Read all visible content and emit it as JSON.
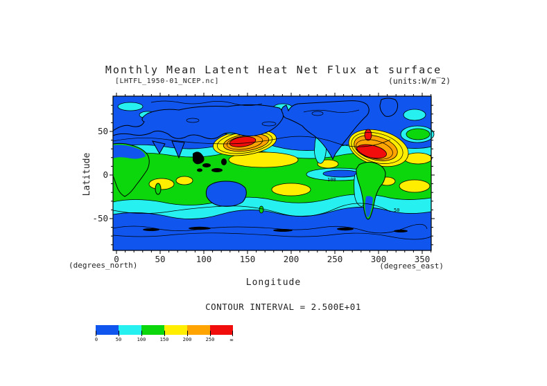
{
  "title": "Monthly Mean Latent Heat Net Flux at surface",
  "dataset_label": "[LHTFL_1950-01_NCEP.nc]",
  "units_label": "(units:W/m‾2)",
  "axes": {
    "y_label": "Latitude",
    "x_label": "Longitude",
    "y_unit_note": "(degrees_north)",
    "x_unit_note": "(degrees_east)",
    "y_ticks": [
      "50",
      "0",
      "-50"
    ],
    "x_ticks": [
      "0",
      "50",
      "100",
      "150",
      "200",
      "250",
      "300",
      "350"
    ]
  },
  "contour_note": "CONTOUR INTERVAL = 2.500E+01",
  "colorbar": {
    "labels": [
      "0",
      "50",
      "100",
      "150",
      "200",
      "250",
      "∞"
    ],
    "colors": [
      "#0f55ee",
      "#26f0f0",
      "#0cd60c",
      "#ffee00",
      "#ffa400",
      "#f20d0d"
    ]
  },
  "map_labels": {
    "contour_100": "100",
    "contour_50": "50"
  },
  "chart_data": {
    "type": "heatmap",
    "subtype": "filled-contour-world-map",
    "title": "Monthly Mean Latent Heat Net Flux at surface",
    "dataset": "LHTFL_1950-01_NCEP.nc",
    "units": "W/m^2",
    "xlabel": "Longitude (degrees_east)",
    "ylabel": "Latitude (degrees_north)",
    "xlim": [
      0,
      360
    ],
    "ylim": [
      -90,
      90
    ],
    "x_tick_values": [
      0,
      50,
      100,
      150,
      200,
      250,
      300,
      350
    ],
    "y_tick_values": [
      -50,
      0,
      50
    ],
    "contour_interval": 25.0,
    "color_levels": [
      {
        "range": "0-50",
        "color": "#0f55ee"
      },
      {
        "range": "50-100",
        "color": "#26f0f0"
      },
      {
        "range": "100-150",
        "color": "#0cd60c"
      },
      {
        "range": "150-200",
        "color": "#ffee00"
      },
      {
        "range": "200-250",
        "color": "#ffa400"
      },
      {
        "range": ">250",
        "color": "#f20d0d"
      }
    ],
    "contour_labels_on_map": [
      {
        "value": 100,
        "approx_lon": 252,
        "approx_lat": -4
      },
      {
        "value": 50,
        "approx_lon": 328,
        "approx_lat": -40
      }
    ],
    "visual_features": [
      "maximum flux (>250 W/m^2, red) over northwest Pacific Kuroshio region near lon 140-180, lat 20-35",
      "maximum flux (>250 W/m^2, red) over northwest Atlantic Gulf Stream region near lon 285-320, lat 25-40",
      "broad 100-150 W/m^2 green band across tropics and subtropics with yellow 150-200 patches in trade-wind zones",
      "low flux (<50 W/m^2, blue) over polar oceans, continents and equatorial east Pacific cold tongue"
    ],
    "legend_position": "bottom-left horizontal colorbar",
    "grid": false
  }
}
